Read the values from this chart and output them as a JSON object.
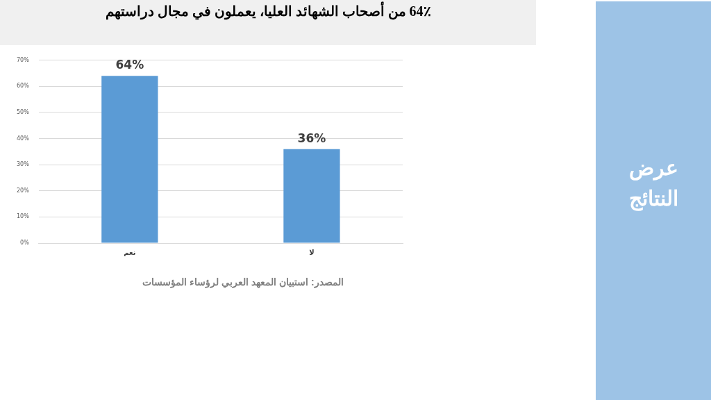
{
  "chart_data": {
    "type": "bar",
    "title": "64٪ من أصحاب الشهائد العليا، يعملون في مجال دراستهم",
    "categories": [
      "نعم",
      "لا"
    ],
    "values": [
      64,
      36
    ],
    "color": "#5b9bd5",
    "value_labels": [
      "64%",
      "36%"
    ],
    "ylim": [
      0,
      70
    ],
    "yticks": [
      {
        "value": 0,
        "label": "0%"
      },
      {
        "value": 10,
        "label": "10%"
      },
      {
        "value": 20,
        "label": "20%"
      },
      {
        "value": 30,
        "label": "30%"
      },
      {
        "value": 40,
        "label": "40%"
      },
      {
        "value": 50,
        "label": "50%"
      },
      {
        "value": 60,
        "label": "60%"
      },
      {
        "value": 70,
        "label": "70%"
      }
    ],
    "grid": "y",
    "legend": false,
    "annotations": [
      "المصدر: استبيان المعهد العربي لرؤساء  المؤسسات",
      "عرض النتائج"
    ]
  }
}
